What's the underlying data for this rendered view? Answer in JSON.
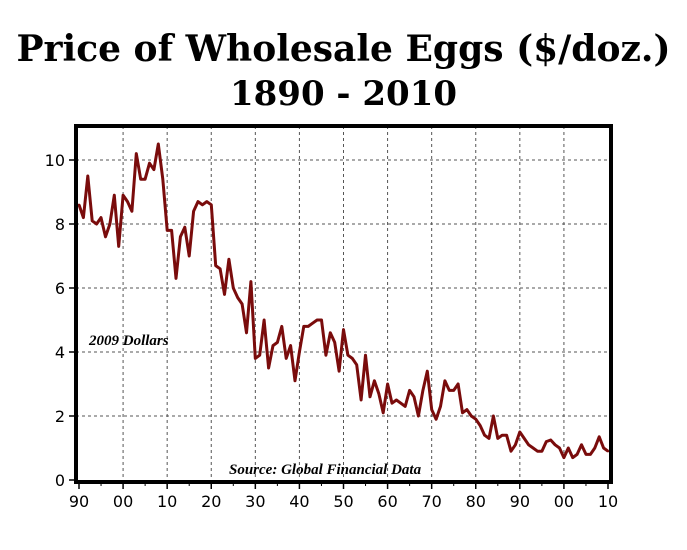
{
  "chart_data": {
    "type": "line",
    "title": "Price of Wholesale Eggs ($/doz.)",
    "subtitle": "1890 - 2010",
    "xlabel": "",
    "ylabel": "",
    "xlim": [
      1890,
      2010
    ],
    "ylim": [
      0,
      11
    ],
    "x_ticks": [
      1890,
      1900,
      1910,
      1920,
      1930,
      1940,
      1950,
      1960,
      1970,
      1980,
      1990,
      2000,
      2010
    ],
    "x_tick_labels": [
      "90",
      "00",
      "10",
      "20",
      "30",
      "40",
      "50",
      "60",
      "70",
      "80",
      "90",
      "00",
      "10"
    ],
    "y_ticks": [
      0,
      2,
      4,
      6,
      8,
      10
    ],
    "y_tick_labels": [
      "0",
      "2",
      "4",
      "6",
      "8",
      "10"
    ],
    "grid": true,
    "line_color": "#7a0c0c",
    "annotations": [
      "2009 Dollars",
      "Source: Global Financial Data"
    ],
    "series": [
      {
        "name": "",
        "x": [
          1890,
          1891,
          1892,
          1893,
          1894,
          1895,
          1896,
          1897,
          1898,
          1899,
          1900,
          1901,
          1902,
          1903,
          1904,
          1905,
          1906,
          1907,
          1908,
          1909,
          1910,
          1911,
          1912,
          1913,
          1914,
          1915,
          1916,
          1917,
          1918,
          1919,
          1920,
          1921,
          1922,
          1923,
          1924,
          1925,
          1926,
          1927,
          1928,
          1929,
          1930,
          1931,
          1932,
          1933,
          1934,
          1935,
          1936,
          1937,
          1938,
          1939,
          1940,
          1941,
          1942,
          1943,
          1944,
          1945,
          1946,
          1947,
          1948,
          1949,
          1950,
          1951,
          1952,
          1953,
          1954,
          1955,
          1956,
          1957,
          1958,
          1959,
          1960,
          1961,
          1962,
          1963,
          1964,
          1965,
          1966,
          1967,
          1968,
          1969,
          1970,
          1971,
          1972,
          1973,
          1974,
          1975,
          1976,
          1977,
          1978,
          1979,
          1980,
          1981,
          1982,
          1983,
          1984,
          1985,
          1986,
          1987,
          1988,
          1989,
          1990,
          1991,
          1992,
          1993,
          1994,
          1995,
          1996,
          1997,
          1998,
          1999,
          2000,
          2001,
          2002,
          2003,
          2004,
          2005,
          2006,
          2007,
          2008,
          2009,
          2010
        ],
        "values": [
          8.6,
          8.2,
          9.5,
          8.1,
          8.0,
          8.2,
          7.6,
          8.0,
          8.9,
          7.3,
          8.9,
          8.7,
          8.4,
          10.2,
          9.4,
          9.4,
          9.9,
          9.7,
          10.5,
          9.4,
          7.8,
          7.8,
          6.3,
          7.6,
          7.9,
          7.0,
          8.4,
          8.7,
          8.6,
          8.7,
          8.6,
          6.7,
          6.6,
          5.8,
          6.9,
          6.0,
          5.7,
          5.5,
          4.6,
          6.2,
          3.8,
          3.9,
          5.0,
          3.5,
          4.2,
          4.3,
          4.8,
          3.8,
          4.2,
          3.1,
          4.0,
          4.8,
          4.8,
          4.9,
          5.0,
          5.0,
          3.9,
          4.6,
          4.3,
          3.4,
          4.7,
          3.9,
          3.8,
          3.6,
          2.5,
          3.9,
          2.6,
          3.1,
          2.7,
          2.1,
          3.0,
          2.4,
          2.5,
          2.4,
          2.3,
          2.8,
          2.6,
          2.0,
          2.8,
          3.4,
          2.2,
          1.9,
          2.3,
          3.1,
          2.8,
          2.8,
          3.0,
          2.1,
          2.2,
          2.0,
          1.9,
          1.7,
          1.4,
          1.3,
          2.0,
          1.3,
          1.4,
          1.4,
          0.9,
          1.1,
          1.5,
          1.3,
          1.1,
          1.0,
          0.9,
          0.9,
          1.2,
          1.25,
          1.1,
          1.0,
          0.7,
          1.0,
          0.7,
          0.8,
          1.1,
          0.8,
          0.8,
          1.0,
          1.35,
          1.0,
          0.9
        ]
      }
    ]
  }
}
